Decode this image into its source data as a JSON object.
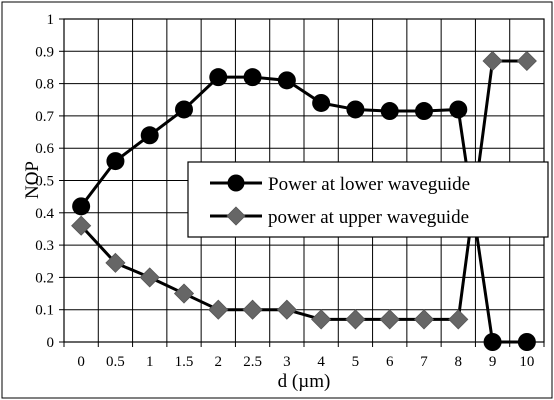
{
  "chart_data": {
    "type": "line",
    "xlabel": "d (µm)",
    "ylabel": "NOP",
    "categories": [
      "0",
      "0.5",
      "1",
      "1.5",
      "2",
      "2.5",
      "3",
      "4",
      "5",
      "6",
      "7",
      "8",
      "9",
      "10"
    ],
    "ylim": [
      0,
      1
    ],
    "yticks": [
      "0",
      "0.1",
      "0.2",
      "0.3",
      "0.4",
      "0.5",
      "0.6",
      "0.7",
      "0.8",
      "0.9",
      "1"
    ],
    "grid": true,
    "legend_position": "center-right",
    "series": [
      {
        "name": "Power at lower waveguide",
        "marker": "circle",
        "color": "#000000",
        "values": [
          0.42,
          0.56,
          0.64,
          0.72,
          0.82,
          0.82,
          0.81,
          0.74,
          0.72,
          0.715,
          0.715,
          0.72,
          0.0,
          0.0
        ]
      },
      {
        "name": "power at upper waveguide",
        "marker": "diamond",
        "color": "#666666",
        "values": [
          0.36,
          0.245,
          0.2,
          0.15,
          0.1,
          0.1,
          0.1,
          0.07,
          0.07,
          0.07,
          0.07,
          0.07,
          0.87,
          0.87
        ]
      }
    ]
  }
}
